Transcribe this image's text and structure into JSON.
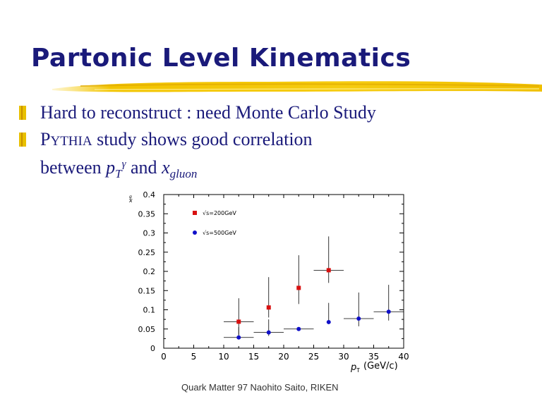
{
  "slide": {
    "title": "Partonic Level Kinematics",
    "bullets": [
      {
        "text": "Hard to reconstruct : need Monte Carlo Study"
      },
      {
        "prefix_cap": "P",
        "prefix_small": "YTHIA",
        "text": " study shows good correlation"
      }
    ],
    "continuation": {
      "before": "between ",
      "p": "p",
      "T": "T",
      "gamma": "γ",
      "middle": " and ",
      "x": "x",
      "gluon": "gluon"
    },
    "footer": "Quark Matter 97  Naohito Saito, RIKEN",
    "colors": {
      "title": "#1a1a7a",
      "bullet": "#e8c000",
      "brush": "#f5c800"
    }
  },
  "chart_data": {
    "type": "scatter",
    "xlabel": "p",
    "xlabel_sub": "T",
    "xlabel_unit": "(GeV/c)",
    "ylabel": "x",
    "ylabel_sub": "g",
    "xlim": [
      0,
      40
    ],
    "ylim": [
      0,
      0.4
    ],
    "xticks": [
      0,
      5,
      10,
      15,
      20,
      25,
      30,
      35,
      40
    ],
    "yticks": [
      0,
      0.05,
      0.1,
      0.15,
      0.2,
      0.25,
      0.3,
      0.35,
      0.4
    ],
    "xtick_labels": [
      "0",
      "5",
      "10",
      "15",
      "20",
      "25",
      "30",
      "35",
      "40"
    ],
    "ytick_labels": [
      "0",
      "0.05",
      "0.1",
      "0.15",
      "0.2",
      "0.25",
      "0.3",
      "0.35",
      "0.4"
    ],
    "legend_position": "top-left",
    "series": [
      {
        "name": "√s=200GeV",
        "color": "#d81010",
        "marker": "square",
        "points": [
          {
            "x": 12.5,
            "y": 0.069,
            "xerr": 2.5,
            "ylo": 0.035,
            "yhi": 0.13
          },
          {
            "x": 17.5,
            "y": 0.106,
            "xerr": 0,
            "ylo": 0.08,
            "yhi": 0.185
          },
          {
            "x": 22.5,
            "y": 0.157,
            "xerr": 0,
            "ylo": 0.115,
            "yhi": 0.242
          },
          {
            "x": 27.5,
            "y": 0.203,
            "xerr": 2.5,
            "ylo": 0.17,
            "yhi": 0.291
          }
        ]
      },
      {
        "name": "√s=500GeV",
        "color": "#1010c8",
        "marker": "circle",
        "points": [
          {
            "x": 12.5,
            "y": 0.028,
            "xerr": 2.5,
            "ylo": 0.028,
            "yhi": 0.055
          },
          {
            "x": 17.5,
            "y": 0.041,
            "xerr": 2.5,
            "ylo": 0.032,
            "yhi": 0.075
          },
          {
            "x": 22.5,
            "y": 0.05,
            "xerr": 2.5,
            "ylo": 0.045,
            "yhi": 0.055
          },
          {
            "x": 27.5,
            "y": 0.068,
            "xerr": 0,
            "ylo": 0.068,
            "yhi": 0.118
          },
          {
            "x": 32.5,
            "y": 0.077,
            "xerr": 2.5,
            "ylo": 0.057,
            "yhi": 0.145
          },
          {
            "x": 37.5,
            "y": 0.095,
            "xerr": 2.5,
            "ylo": 0.072,
            "yhi": 0.165
          }
        ]
      }
    ]
  }
}
